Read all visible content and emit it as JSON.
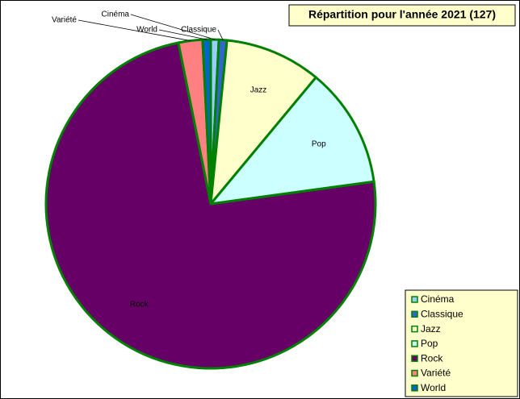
{
  "chart_data": {
    "type": "pie",
    "title": "Répartition pour l'année 2021 (127)",
    "categories": [
      "Cinéma",
      "Classique",
      "Jazz",
      "Pop",
      "Rock",
      "Variété",
      "World"
    ],
    "values": [
      1,
      1,
      12,
      15,
      94,
      3,
      1
    ],
    "colors": [
      "#99ccff",
      "#3366cc",
      "#ffffcc",
      "#ccffff",
      "#660066",
      "#ff8080",
      "#0066cc"
    ],
    "legend": "bottom-right"
  }
}
